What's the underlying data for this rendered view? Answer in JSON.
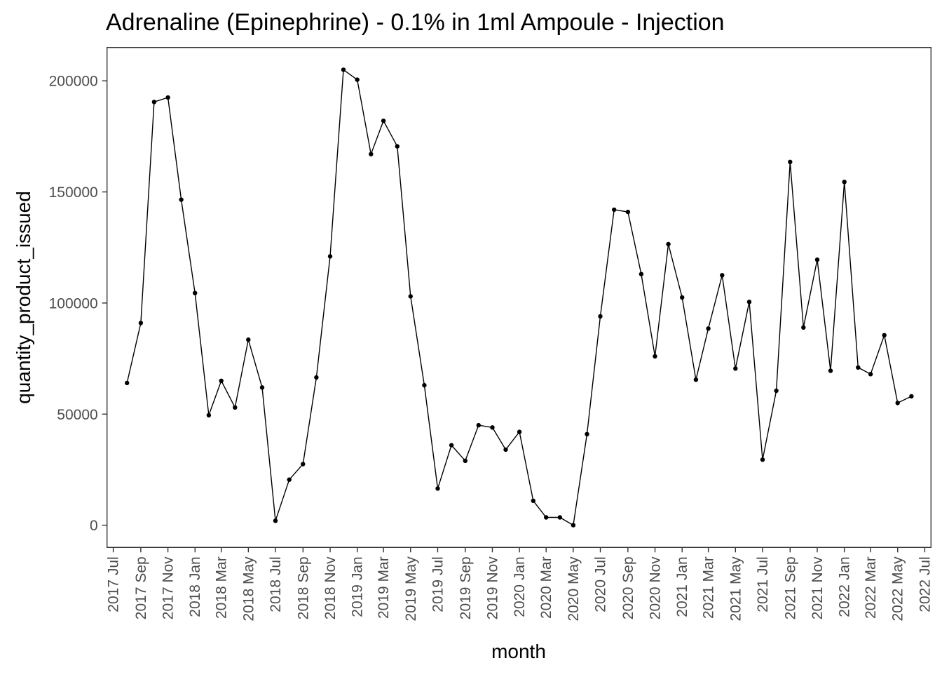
{
  "chart_data": {
    "type": "line",
    "title": "Adrenaline (Epinephrine) - 0.1% in 1ml Ampoule - Injection",
    "xlabel": "month",
    "ylabel": "quantity_product_issued",
    "x_ticks": [
      "2017 Jul",
      "2017 Sep",
      "2017 Nov",
      "2018 Jan",
      "2018 Mar",
      "2018 May",
      "2018 Jul",
      "2018 Sep",
      "2018 Nov",
      "2019 Jan",
      "2019 Mar",
      "2019 May",
      "2019 Jul",
      "2019 Sep",
      "2019 Nov",
      "2020 Jan",
      "2020 Mar",
      "2020 May",
      "2020 Jul",
      "2020 Sep",
      "2020 Nov",
      "2021 Jan",
      "2021 Mar",
      "2021 May",
      "2021 Jul",
      "2021 Sep",
      "2021 Nov",
      "2022 Jan",
      "2022 Mar",
      "2022 May",
      "2022 Jul"
    ],
    "y_ticks": [
      0,
      50000,
      100000,
      150000,
      200000
    ],
    "ylim": [
      -10000,
      215000
    ],
    "xlim": [
      "2017-06-17",
      "2022-07-15"
    ],
    "grid": false,
    "legend": "none",
    "line_color": "#000000",
    "x": [
      "2017-08-01",
      "2017-09-01",
      "2017-10-01",
      "2017-11-01",
      "2017-12-01",
      "2018-01-01",
      "2018-02-01",
      "2018-03-01",
      "2018-04-01",
      "2018-05-01",
      "2018-06-01",
      "2018-07-01",
      "2018-08-01",
      "2018-09-01",
      "2018-10-01",
      "2018-11-01",
      "2018-12-01",
      "2019-01-01",
      "2019-02-01",
      "2019-03-01",
      "2019-04-01",
      "2019-05-01",
      "2019-06-01",
      "2019-07-01",
      "2019-08-01",
      "2019-09-01",
      "2019-10-01",
      "2019-11-01",
      "2019-12-01",
      "2020-01-01",
      "2020-02-01",
      "2020-03-01",
      "2020-04-01",
      "2020-05-01",
      "2020-06-01",
      "2020-07-01",
      "2020-08-01",
      "2020-09-01",
      "2020-10-01",
      "2020-11-01",
      "2020-12-01",
      "2021-01-01",
      "2021-02-01",
      "2021-03-01",
      "2021-04-01",
      "2021-05-01",
      "2021-06-01",
      "2021-07-01",
      "2021-08-01",
      "2021-09-01",
      "2021-10-01",
      "2021-11-01",
      "2021-12-01",
      "2022-01-01",
      "2022-02-01",
      "2022-03-01",
      "2022-04-01",
      "2022-05-01",
      "2022-06-01"
    ],
    "y": [
      64000,
      91000,
      190500,
      192500,
      146500,
      104500,
      49500,
      65000,
      53000,
      83500,
      62000,
      2000,
      20500,
      27500,
      66500,
      121000,
      205000,
      200500,
      167000,
      182000,
      170500,
      103000,
      63000,
      16500,
      36000,
      29000,
      45000,
      44000,
      34000,
      42000,
      11000,
      3500,
      3500,
      0,
      41000,
      94000,
      142000,
      141000,
      113000,
      76000,
      126500,
      102500,
      65500,
      88500,
      112500,
      70500,
      100500,
      29500,
      60500,
      163500,
      89000,
      119500,
      69500,
      154500,
      71000,
      68000,
      85500,
      55000,
      58000
    ]
  }
}
